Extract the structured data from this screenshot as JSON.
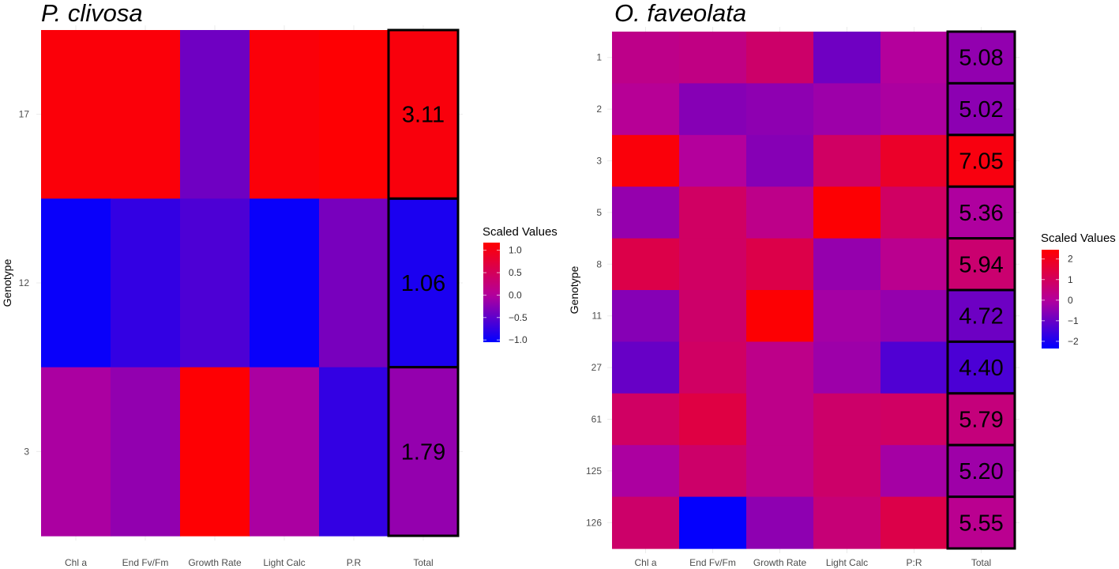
{
  "chart_data": [
    {
      "type": "heatmap",
      "title": "P. clivosa",
      "xlabel": "",
      "ylabel": "Genotype",
      "categories": [
        "Chl a",
        "End Fv/Fm",
        "Growth Rate",
        "Light Calc",
        "P.R",
        "Total"
      ],
      "rows": [
        "17",
        "12",
        "3"
      ],
      "values": [
        [
          1.1,
          1.1,
          -0.4,
          1.1,
          1.15
        ],
        [
          -1.0,
          -0.75,
          -0.6,
          -1.0,
          -0.35
        ],
        [
          -0.05,
          -0.2,
          1.15,
          -0.05,
          -0.75
        ]
      ],
      "totals": [
        "3.11",
        "1.06",
        "1.79"
      ],
      "legend": {
        "title": "Scaled Values",
        "labels": [
          "1.0",
          "0.5",
          "0.0",
          "−0.5",
          "−1.0"
        ],
        "ticks": [
          1.0,
          0.5,
          0.0,
          -0.5,
          -1.0
        ],
        "range": [
          -1.05,
          1.17
        ],
        "placement": "right"
      },
      "colors": {
        "low": "#0000ff",
        "mid": "#b4009c",
        "high": "#ff0000"
      }
    },
    {
      "type": "heatmap",
      "title": "O. faveolata",
      "xlabel": "",
      "ylabel": "Genotype",
      "categories": [
        "Chl a",
        "End Fv/Fm",
        "Growth Rate",
        "Light Calc",
        "P:R",
        "Total"
      ],
      "rows": [
        "1",
        "2",
        "3",
        "5",
        "8",
        "11",
        "27",
        "61",
        "125",
        "126"
      ],
      "values": [
        [
          0.3,
          0.4,
          0.8,
          -0.9,
          0.0
        ],
        [
          0.1,
          -0.6,
          -0.5,
          -0.3,
          -0.1
        ],
        [
          2.3,
          0.0,
          -0.6,
          0.9,
          1.8
        ],
        [
          -0.4,
          0.9,
          0.3,
          2.4,
          0.9
        ],
        [
          1.3,
          0.9,
          1.3,
          -0.4,
          0.2
        ],
        [
          -0.6,
          0.8,
          2.4,
          -0.2,
          -0.4
        ],
        [
          -1.0,
          0.9,
          0.3,
          -0.3,
          -1.3
        ],
        [
          0.9,
          1.4,
          0.3,
          0.8,
          0.9
        ],
        [
          -0.1,
          0.8,
          0.3,
          0.8,
          -0.2
        ],
        [
          0.8,
          -2.3,
          -0.5,
          0.6,
          1.3
        ]
      ],
      "totals": [
        "5.08",
        "5.02",
        "7.05",
        "5.36",
        "5.94",
        "4.72",
        "4.40",
        "5.79",
        "5.20",
        "5.55"
      ],
      "legend": {
        "title": "Scaled Values",
        "labels": [
          "2",
          "1",
          "0",
          "−1",
          "−2"
        ],
        "ticks": [
          2,
          1,
          0,
          -1,
          -2
        ],
        "range": [
          -2.35,
          2.45
        ],
        "placement": "right"
      },
      "colors": {
        "low": "#0000ff",
        "mid": "#b4009c",
        "high": "#ff0000"
      }
    }
  ]
}
